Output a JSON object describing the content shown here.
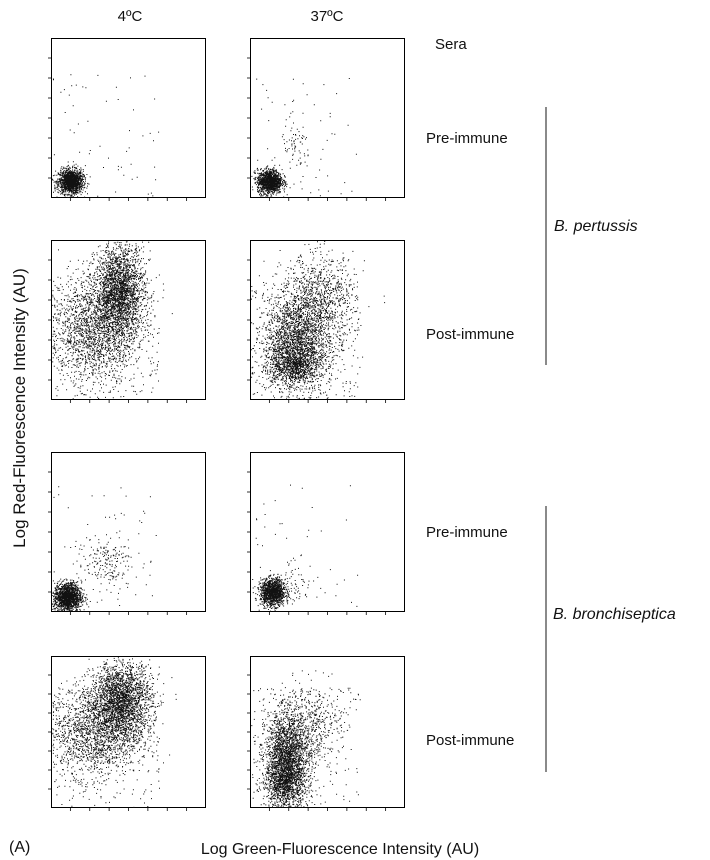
{
  "figure": {
    "columns": [
      "4ºC",
      "37ºC"
    ],
    "sera_label": "Sera",
    "y_axis_label": "Log Red-Fluorescence Intensity (AU)",
    "x_axis_label": "Log Green-Fluorescence Intensity (AU)",
    "panel_label": "(A)",
    "organisms": [
      "B. pertussis",
      "B. bronchiseptica"
    ],
    "rows": [
      "Pre-immune",
      "Post-immune",
      "Pre-immune",
      "Post-immune"
    ]
  },
  "chart_data": [
    {
      "type": "scatter",
      "organism": "B. pertussis",
      "serum": "Pre-immune",
      "temperature": "4ºC",
      "xlim": [
        0,
        10
      ],
      "ylim": [
        0,
        10
      ],
      "clusters": [
        {
          "cx": 1.2,
          "cy": 1.0,
          "sx": 0.4,
          "sy": 0.38,
          "n": 1500
        }
      ],
      "sparse": 60
    },
    {
      "type": "scatter",
      "organism": "B. pertussis",
      "serum": "Pre-immune",
      "temperature": "37ºC",
      "xlim": [
        0,
        10
      ],
      "ylim": [
        0,
        10
      ],
      "clusters": [
        {
          "cx": 1.2,
          "cy": 1.0,
          "sx": 0.4,
          "sy": 0.38,
          "n": 1300
        },
        {
          "cx": 2.9,
          "cy": 3.1,
          "sx": 0.5,
          "sy": 0.9,
          "n": 70
        }
      ],
      "sparse": 50
    },
    {
      "type": "scatter",
      "organism": "B. pertussis",
      "serum": "Post-immune",
      "temperature": "4ºC",
      "xlim": [
        0,
        10
      ],
      "ylim": [
        0,
        10
      ],
      "clusters": [
        {
          "cx": 4.4,
          "cy": 6.8,
          "sx": 0.8,
          "sy": 1.5,
          "n": 2400
        },
        {
          "cx": 2.6,
          "cy": 4.4,
          "sx": 1.4,
          "sy": 1.7,
          "n": 1700
        }
      ],
      "sparse": 300
    },
    {
      "type": "scatter",
      "organism": "B. pertussis",
      "serum": "Post-immune",
      "temperature": "37ºC",
      "xlim": [
        0,
        10
      ],
      "ylim": [
        0,
        10
      ],
      "clusters": [
        {
          "cx": 2.8,
          "cy": 3.4,
          "sx": 1.0,
          "sy": 1.5,
          "n": 2100
        },
        {
          "cx": 4.4,
          "cy": 6.0,
          "sx": 1.2,
          "sy": 1.6,
          "n": 1100
        },
        {
          "cx": 2.8,
          "cy": 2.1,
          "sx": 0.9,
          "sy": 0.5,
          "n": 600
        }
      ],
      "sparse": 250
    },
    {
      "type": "scatter",
      "organism": "B. bronchiseptica",
      "serum": "Pre-immune",
      "temperature": "4ºC",
      "xlim": [
        0,
        10
      ],
      "ylim": [
        0,
        10
      ],
      "clusters": [
        {
          "cx": 1.0,
          "cy": 0.9,
          "sx": 0.45,
          "sy": 0.45,
          "n": 1500
        },
        {
          "cx": 3.4,
          "cy": 3.1,
          "sx": 0.9,
          "sy": 0.8,
          "n": 180
        }
      ],
      "sparse": 60
    },
    {
      "type": "scatter",
      "organism": "B. bronchiseptica",
      "serum": "Pre-immune",
      "temperature": "37ºC",
      "xlim": [
        0,
        10
      ],
      "ylim": [
        0,
        10
      ],
      "clusters": [
        {
          "cx": 1.4,
          "cy": 1.2,
          "sx": 0.4,
          "sy": 0.42,
          "n": 1300
        },
        {
          "cx": 2.9,
          "cy": 1.9,
          "sx": 0.6,
          "sy": 0.7,
          "n": 60
        }
      ],
      "sparse": 40
    },
    {
      "type": "scatter",
      "organism": "B. bronchiseptica",
      "serum": "Post-immune",
      "temperature": "4ºC",
      "xlim": [
        0,
        10
      ],
      "ylim": [
        0,
        10
      ],
      "clusters": [
        {
          "cx": 4.5,
          "cy": 7.1,
          "sx": 1.0,
          "sy": 1.3,
          "n": 2400
        },
        {
          "cx": 2.7,
          "cy": 5.0,
          "sx": 1.5,
          "sy": 1.5,
          "n": 1500
        }
      ],
      "sparse": 250
    },
    {
      "type": "scatter",
      "organism": "B. bronchiseptica",
      "serum": "Post-immune",
      "temperature": "37ºC",
      "xlim": [
        0,
        10
      ],
      "ylim": [
        0,
        10
      ],
      "clusters": [
        {
          "cx": 2.3,
          "cy": 3.0,
          "sx": 0.7,
          "sy": 1.6,
          "n": 2500
        },
        {
          "cx": 3.8,
          "cy": 5.5,
          "sx": 1.0,
          "sy": 1.4,
          "n": 500
        },
        {
          "cx": 2.2,
          "cy": 1.6,
          "sx": 0.6,
          "sy": 0.6,
          "n": 500
        }
      ],
      "sparse": 200
    }
  ]
}
